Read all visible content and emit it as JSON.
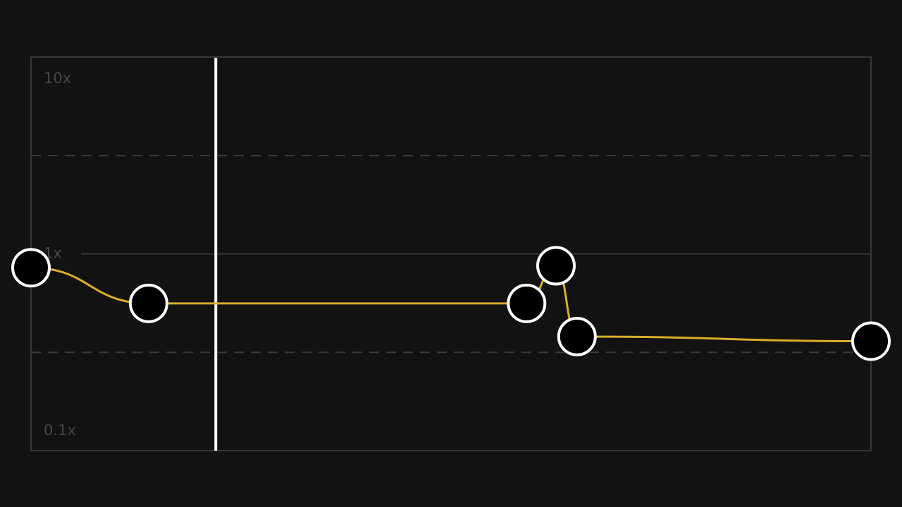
{
  "chart_data": {
    "type": "line",
    "log_scale_y": true,
    "x": [
      0,
      0.14,
      0.59,
      0.625,
      0.65,
      1
    ],
    "xlim": [
      0,
      1
    ],
    "series": [
      {
        "color": "#d9ad2b",
        "values": [
          0.85,
          0.56,
          0.56,
          0.87,
          0.38,
          0.36
        ]
      }
    ],
    "ylim": [
      0.1,
      10
    ],
    "yticks": [
      {
        "value": 10,
        "label": "10x"
      },
      {
        "value": 1,
        "label": "1x"
      },
      {
        "value": 0.1,
        "label": "0.1x"
      }
    ],
    "minor_yticks": [
      3.16,
      0.316
    ],
    "playhead": 0.22
  }
}
